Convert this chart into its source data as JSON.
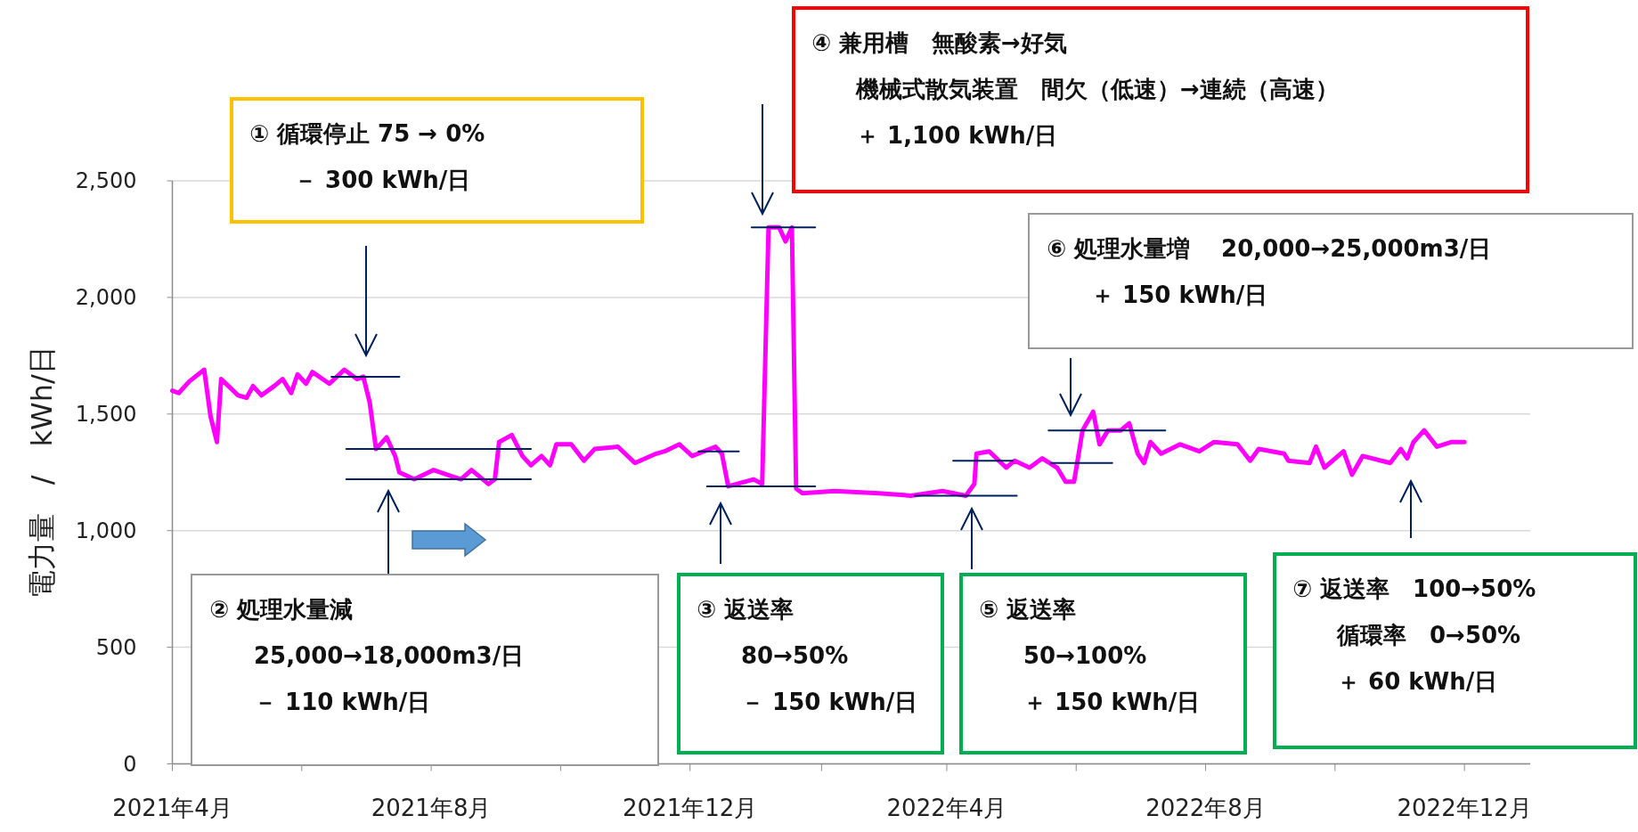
{
  "chart_data": {
    "type": "line",
    "ylabel": "電力量　/　kWh/日",
    "ylim": [
      0,
      2500
    ],
    "yticks": [
      {
        "value": 0,
        "label": "0"
      },
      {
        "value": 500,
        "label": "500"
      },
      {
        "value": 1000,
        "label": "1,000"
      },
      {
        "value": 1500,
        "label": "1,500"
      },
      {
        "value": 2000,
        "label": "2,000"
      },
      {
        "value": 2500,
        "label": "2,500"
      }
    ],
    "xlim": [
      "2021-04-01",
      "2023-01-01"
    ],
    "xticks": [
      {
        "value": "2021-04",
        "label": "2021年4月"
      },
      {
        "value": "2021-06",
        "label": null
      },
      {
        "value": "2021-08",
        "label": "2021年8月"
      },
      {
        "value": "2021-10",
        "label": null
      },
      {
        "value": "2021-12",
        "label": "2021年12月"
      },
      {
        "value": "2022-02",
        "label": null
      },
      {
        "value": "2022-04",
        "label": "2022年4月"
      },
      {
        "value": "2022-06",
        "label": null
      },
      {
        "value": "2022-08",
        "label": "2022年8月"
      },
      {
        "value": "2022-10",
        "label": null
      },
      {
        "value": "2022-12",
        "label": "2022年12月"
      }
    ],
    "grid": "y",
    "series": [
      {
        "color": "#ff00ff",
        "x": [
          "2021-04-01",
          "2021-04-04",
          "2021-04-09",
          "2021-04-16",
          "2021-04-19",
          "2021-04-22",
          "2021-04-24",
          "2021-05-02",
          "2021-05-06",
          "2021-05-09",
          "2021-05-13",
          "2021-05-19",
          "2021-05-23",
          "2021-05-27",
          "2021-05-30",
          "2021-06-03",
          "2021-06-06",
          "2021-06-14",
          "2021-06-21",
          "2021-06-27",
          "2021-06-30",
          "2021-07-03",
          "2021-07-06",
          "2021-07-11",
          "2021-07-15",
          "2021-07-17",
          "2021-07-24",
          "2021-08-02",
          "2021-08-15",
          "2021-08-20",
          "2021-08-28",
          "2021-08-31",
          "2021-09-02",
          "2021-09-08",
          "2021-09-13",
          "2021-09-17",
          "2021-09-22",
          "2021-09-26",
          "2021-09-29",
          "2021-10-06",
          "2021-10-12",
          "2021-10-17",
          "2021-10-28",
          "2021-11-05",
          "2021-11-15",
          "2021-11-19",
          "2021-11-26",
          "2021-12-02",
          "2021-12-13",
          "2021-12-16",
          "2021-12-19",
          "2021-12-31",
          "2022-01-04",
          "2022-01-07",
          "2022-01-12",
          "2022-01-15",
          "2022-01-18",
          "2022-01-20",
          "2022-01-23",
          "2022-02-07",
          "2022-02-28",
          "2022-03-15",
          "2022-03-30",
          "2022-04-10",
          "2022-04-14",
          "2022-04-15",
          "2022-04-21",
          "2022-04-29",
          "2022-05-03",
          "2022-05-10",
          "2022-05-16",
          "2022-05-23",
          "2022-05-27",
          "2022-05-31",
          "2022-06-04",
          "2022-06-09",
          "2022-06-12",
          "2022-06-16",
          "2022-06-22",
          "2022-06-26",
          "2022-06-30",
          "2022-07-03",
          "2022-07-06",
          "2022-07-11",
          "2022-07-20",
          "2022-07-29",
          "2022-08-05",
          "2022-08-16",
          "2022-08-22",
          "2022-08-26",
          "2022-09-07",
          "2022-09-09",
          "2022-09-19",
          "2022-09-22",
          "2022-09-26",
          "2022-10-05",
          "2022-10-09",
          "2022-10-14",
          "2022-10-27",
          "2022-11-01",
          "2022-11-04",
          "2022-11-07",
          "2022-11-12",
          "2022-11-18",
          "2022-11-25",
          "2022-12-01"
        ],
        "values": [
          1600,
          1590,
          1640,
          1690,
          1490,
          1380,
          1650,
          1580,
          1570,
          1620,
          1580,
          1620,
          1650,
          1590,
          1670,
          1630,
          1680,
          1630,
          1690,
          1650,
          1660,
          1550,
          1350,
          1400,
          1320,
          1250,
          1220,
          1260,
          1220,
          1260,
          1200,
          1220,
          1380,
          1410,
          1320,
          1280,
          1320,
          1280,
          1370,
          1370,
          1300,
          1350,
          1360,
          1290,
          1330,
          1340,
          1370,
          1320,
          1360,
          1330,
          1190,
          1220,
          1200,
          2300,
          2300,
          2240,
          2300,
          1180,
          1160,
          1170,
          1160,
          1150,
          1170,
          1150,
          1200,
          1330,
          1340,
          1270,
          1300,
          1270,
          1310,
          1270,
          1210,
          1210,
          1430,
          1510,
          1370,
          1430,
          1430,
          1460,
          1330,
          1290,
          1380,
          1330,
          1370,
          1340,
          1380,
          1370,
          1300,
          1350,
          1330,
          1300,
          1290,
          1360,
          1270,
          1340,
          1240,
          1320,
          1290,
          1350,
          1310,
          1380,
          1430,
          1360,
          1380,
          1380
        ]
      },
      {
        "color": "#002060",
        "x": [
          "2021-06-15",
          "2021-07-17"
        ],
        "values": [
          1660,
          1660
        ]
      },
      {
        "color": "#002060",
        "x": [
          "2021-06-22",
          "2021-09-17"
        ],
        "values": [
          1350,
          1350
        ]
      },
      {
        "color": "#002060",
        "x": [
          "2021-06-22",
          "2021-09-17"
        ],
        "values": [
          1220,
          1220
        ]
      },
      {
        "color": "#002060",
        "x": [
          "2021-12-05",
          "2021-12-24"
        ],
        "values": [
          1340,
          1340
        ]
      },
      {
        "color": "#002060",
        "x": [
          "2021-12-09",
          "2022-01-29"
        ],
        "values": [
          1190,
          1190
        ]
      },
      {
        "color": "#002060",
        "x": [
          "2021-12-30",
          "2022-01-29"
        ],
        "values": [
          2300,
          2300
        ]
      },
      {
        "color": "#002060",
        "x": [
          "2022-03-17",
          "2022-05-04"
        ],
        "values": [
          1150,
          1150
        ]
      },
      {
        "color": "#002060",
        "x": [
          "2022-04-04",
          "2022-05-02"
        ],
        "values": [
          1300,
          1300
        ]
      },
      {
        "color": "#002060",
        "x": [
          "2022-05-20",
          "2022-06-18"
        ],
        "values": [
          1290,
          1290
        ]
      },
      {
        "color": "#002060",
        "x": [
          "2022-05-19",
          "2022-07-13"
        ],
        "values": [
          1430,
          1430
        ]
      }
    ],
    "annotations": [
      "① 循環停止 75 → 0%",
      "－ 300 kWh/日",
      "④ 兼用槽　無酸素→好気",
      "機械式散気装置　間欠（低速）→連続（高速）",
      "＋ 1,100 kWh/日",
      "⑥ 処理水量増　 20,000→25,000m3/日",
      "＋ 150 kWh/日",
      "② 処理水量減",
      "25,000→18,000m3/日",
      "－ 110 kWh/日",
      "③ 返送率",
      "80→50%",
      "－ 150 kWh/日",
      "⑤ 返送率",
      "50→100%",
      "＋ 150 kWh/日",
      "⑦ 返送率　100→50%",
      "循環率　0→50%",
      "＋ 60 kWh/日"
    ]
  }
}
